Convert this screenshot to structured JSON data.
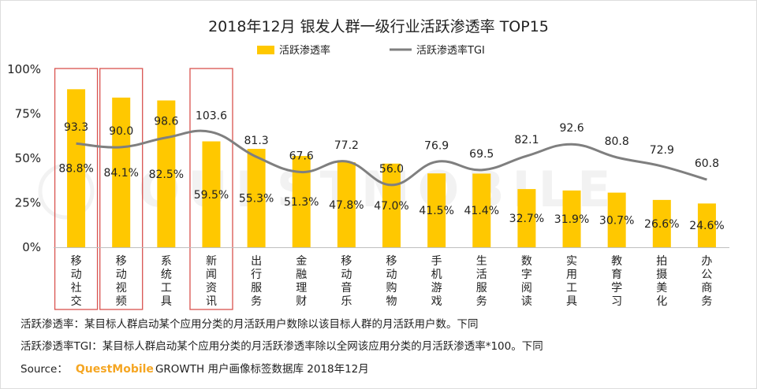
{
  "chart_data": {
    "type": "bar",
    "title": "2018年12月 银发人群一级行业活跃渗透率 TOP15",
    "categories": [
      "移动社交",
      "移动视频",
      "系统工具",
      "新闻资讯",
      "出行服务",
      "金融理财",
      "移动音乐",
      "移动购物",
      "手机游戏",
      "生活服务",
      "数字阅读",
      "实用工具",
      "教育学习",
      "拍摄美化",
      "办公商务"
    ],
    "series": [
      {
        "name": "活跃渗透率",
        "kind": "bar",
        "color": "#FFC800",
        "values": [
          88.8,
          84.1,
          82.5,
          59.5,
          55.3,
          51.3,
          47.8,
          47.0,
          41.5,
          41.4,
          32.7,
          31.9,
          30.7,
          26.6,
          24.6
        ],
        "labels": [
          "88.8%",
          "84.1%",
          "82.5%",
          "59.5%",
          "55.3%",
          "51.3%",
          "47.8%",
          "47.0%",
          "41.5%",
          "41.4%",
          "32.7%",
          "31.9%",
          "30.7%",
          "26.6%",
          "24.6%"
        ]
      },
      {
        "name": "活跃渗透率TGI",
        "kind": "line",
        "color": "#7f7f7f",
        "values": [
          93.3,
          90.0,
          98.6,
          103.6,
          81.3,
          67.6,
          77.2,
          56.0,
          76.9,
          69.5,
          82.1,
          92.6,
          80.8,
          72.9,
          60.8
        ],
        "labels": [
          "93.3",
          "90.0",
          "98.6",
          "103.6",
          "81.3",
          "67.6",
          "77.2",
          "56.0",
          "76.9",
          "69.5",
          "82.1",
          "92.6",
          "80.8",
          "72.9",
          "60.8"
        ]
      }
    ],
    "yticks": [
      "100%",
      "75%",
      "50%",
      "25%",
      "0%"
    ],
    "ylim": [
      0,
      100
    ],
    "tgi_line_scale": [
      0,
      160
    ],
    "highlighted_categories": [
      "移动社交",
      "移动视频",
      "新闻资讯"
    ],
    "highlight_color": "#d9534f",
    "legend_position": "top-center"
  },
  "notes": {
    "line1": "活跃渗透率：某目标人群启动某个应用分类的月活跃用户数除以该目标人群的月活跃用户数。下同",
    "line2": "活跃渗透率TGI：某目标人群启动某个应用分类的月活跃渗透率除以全网该应用分类的月活跃渗透率*100。下同",
    "source_label": "Source：",
    "brand": "QuestMobile",
    "source_rest": "GROWTH 用户画像标签数据库 2018年12月",
    "brand_color": "#f5a623"
  },
  "watermark": "QUESTMOBILE"
}
